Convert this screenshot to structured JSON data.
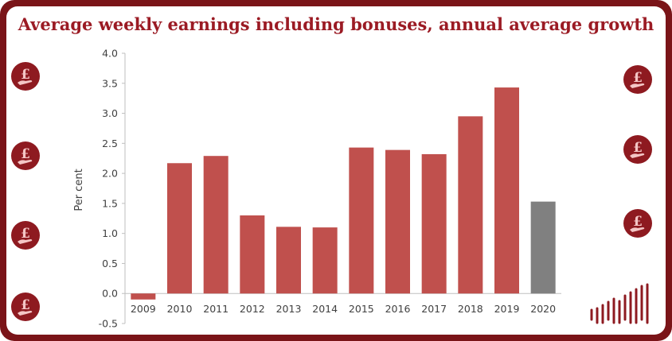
{
  "title": "Average weekly earnings including bonuses, annual average growth",
  "colors": {
    "frame": "#7a1418",
    "title": "#9b1b24",
    "bar": "#c0504d",
    "bar_highlight": "#808080",
    "coin": "#8e1a20",
    "coin_symbol": "#f4c6c6"
  },
  "icons": {
    "left": [
      "pound-coin-hand-icon",
      "pound-coin-hand-icon",
      "pound-coin-hand-icon",
      "pound-coin-hand-icon"
    ],
    "right": [
      "pound-coin-hand-icon",
      "pound-coin-hand-icon",
      "pound-coin-hand-icon"
    ],
    "corner": "bar-sparkline-icon"
  },
  "chart_data": {
    "type": "bar",
    "categories": [
      "2009",
      "2010",
      "2011",
      "2012",
      "2013",
      "2014",
      "2015",
      "2016",
      "2017",
      "2018",
      "2019",
      "2020"
    ],
    "values": [
      -0.1,
      2.17,
      2.29,
      1.3,
      1.11,
      1.1,
      2.43,
      2.39,
      2.32,
      2.95,
      3.43,
      1.53
    ],
    "highlight_index": 11,
    "title": "Average weekly earnings including bonuses, annual average growth",
    "xlabel": "",
    "ylabel": "Per cent",
    "ylim": [
      -0.5,
      4.0
    ],
    "yticks": [
      "-0.5",
      "0.0",
      "0.5",
      "1.0",
      "1.5",
      "2.0",
      "2.5",
      "3.0",
      "3.5",
      "4.0"
    ],
    "grid": false,
    "legend": "none"
  }
}
